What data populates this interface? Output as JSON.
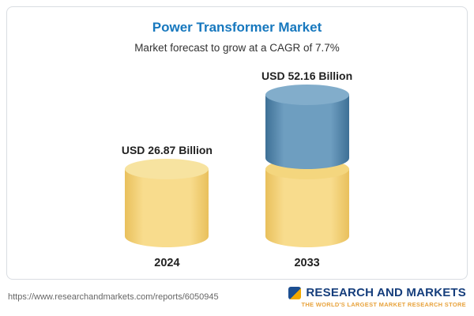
{
  "header": {
    "title": "Power Transformer Market",
    "subtitle": "Market forecast to grow at a CAGR of 7.7%"
  },
  "chart_data": {
    "type": "bar",
    "categories": [
      "2024",
      "2033"
    ],
    "values": [
      26.87,
      52.16
    ],
    "value_labels": [
      "USD 26.87 Billion",
      "USD 52.16 Billion"
    ],
    "unit": "USD Billion",
    "title": "Power Transformer Market",
    "subtitle": "Market forecast to grow at a CAGR of 7.7%",
    "cagr": "7.7%",
    "legend_position": "none",
    "grid": false,
    "colors": {
      "bar_2024": "#f6d67c",
      "bar_2033_growth": "#5b8db4",
      "title_blue": "#1778be"
    }
  },
  "footer": {
    "url": "https://www.researchandmarkets.com/reports/6050945",
    "logo_title": "RESEARCH AND MARKETS",
    "logo_tagline": "THE WORLD'S LARGEST MARKET RESEARCH STORE"
  }
}
